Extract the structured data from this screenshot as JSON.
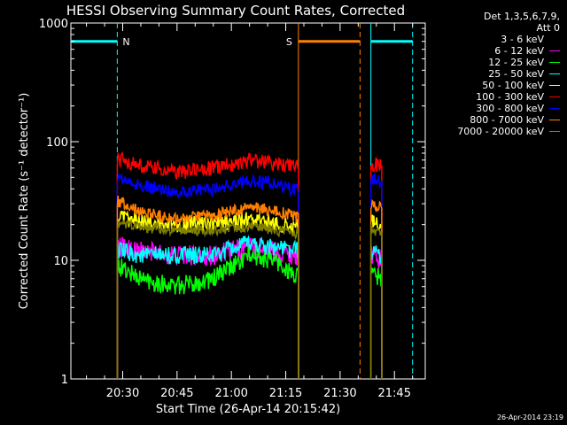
{
  "chart_data": {
    "type": "line",
    "title": "HESSI Observing Summary Count Rates, Corrected",
    "xlabel": "Start Time (26-Apr-14 20:15:42)",
    "ylabel": "Corrected Count Rate (s⁻¹ detector⁻¹)",
    "ylim": [
      1,
      1000
    ],
    "yscale": "log",
    "xlim": [
      "20:15:42",
      "21:53:30"
    ],
    "x_ticks": [
      "20:30",
      "20:45",
      "21:00",
      "21:15",
      "21:30",
      "21:45"
    ],
    "y_ticks": [
      "1",
      "10",
      "100",
      "1000"
    ],
    "legend_header": [
      "Det 1,3,5,6,7,9,",
      "Att 0"
    ],
    "legend_position": "right",
    "flags": [
      {
        "label": "N",
        "color": "#00ffff",
        "intervals": [
          [
            "20:15:42",
            "20:28:30"
          ],
          [
            "21:38:30",
            "21:50:00"
          ]
        ]
      },
      {
        "label": "S",
        "color": "#ff8000",
        "intervals": [
          [
            "21:18:30",
            "21:35:30"
          ]
        ]
      }
    ],
    "segments": [
      [
        "20:28:30",
        "21:18:30"
      ],
      [
        "21:38:30",
        "21:41:30"
      ]
    ],
    "series": [
      {
        "name": "3 - 6 keV",
        "color": "#000000",
        "times": [
          "20:28:30",
          "20:35",
          "20:45",
          "20:55",
          "21:05",
          "21:12",
          "21:18:30",
          "21:38:30",
          "21:41:30"
        ],
        "values": [
          14,
          14,
          14,
          14,
          16,
          14,
          13,
          12,
          11
        ]
      },
      {
        "name": "6 - 12 keV",
        "color": "#ff00ff",
        "times": [
          "20:28:30",
          "20:35",
          "20:45",
          "20:55",
          "21:05",
          "21:12",
          "21:18:30",
          "21:38:30",
          "21:41:30"
        ],
        "values": [
          13,
          12,
          11,
          11,
          13,
          12,
          11,
          11,
          10
        ]
      },
      {
        "name": "12 - 25 keV",
        "color": "#00ff00",
        "times": [
          "20:28:30",
          "20:35",
          "20:45",
          "20:55",
          "21:05",
          "21:12",
          "21:18:30",
          "21:38:30",
          "21:41:30"
        ],
        "values": [
          9,
          7,
          6,
          7,
          11,
          10,
          7,
          8,
          7
        ]
      },
      {
        "name": "25 - 50 keV",
        "color": "#00ffff",
        "times": [
          "20:28:30",
          "20:35",
          "20:45",
          "20:55",
          "21:05",
          "21:12",
          "21:18:30",
          "21:38:30",
          "21:41:30"
        ],
        "values": [
          12,
          11,
          11,
          11,
          14,
          13,
          12,
          12,
          11
        ]
      },
      {
        "name": "50 - 100 keV",
        "color": "#ffff00",
        "times": [
          "20:28:30",
          "20:35",
          "20:45",
          "20:55",
          "21:05",
          "21:12",
          "21:18:30",
          "21:38:30",
          "21:41:30"
        ],
        "values": [
          23,
          21,
          20,
          20,
          22,
          20,
          19,
          21,
          20
        ]
      },
      {
        "name": "100 - 300 keV",
        "color": "#ff0000",
        "times": [
          "20:28:30",
          "20:35",
          "20:45",
          "20:55",
          "21:05",
          "21:12",
          "21:18:30",
          "21:38:30",
          "21:41:30"
        ],
        "values": [
          72,
          62,
          55,
          60,
          70,
          66,
          60,
          65,
          62
        ]
      },
      {
        "name": "300 - 800 keV",
        "color": "#0000ff",
        "times": [
          "20:28:30",
          "20:35",
          "20:45",
          "20:55",
          "21:05",
          "21:12",
          "21:18:30",
          "21:38:30",
          "21:41:30"
        ],
        "values": [
          50,
          42,
          38,
          40,
          47,
          44,
          38,
          48,
          46
        ]
      },
      {
        "name": "800 - 7000 keV",
        "color": "#ff8000",
        "times": [
          "20:28:30",
          "20:35",
          "20:45",
          "20:55",
          "21:05",
          "21:12",
          "21:18:30",
          "21:38:30",
          "21:41:30"
        ],
        "values": [
          32,
          26,
          22,
          24,
          28,
          26,
          23,
          30,
          28
        ]
      },
      {
        "name": "7000 - 20000 keV",
        "color": "#808000",
        "times": [
          "20:28:30",
          "20:35",
          "20:45",
          "20:55",
          "21:05",
          "21:12",
          "21:18:30",
          "21:38:30",
          "21:41:30"
        ],
        "values": [
          20,
          19,
          18,
          18,
          19,
          18,
          17,
          18,
          17
        ]
      }
    ]
  },
  "timestamp": "26-Apr-2014 23:19"
}
